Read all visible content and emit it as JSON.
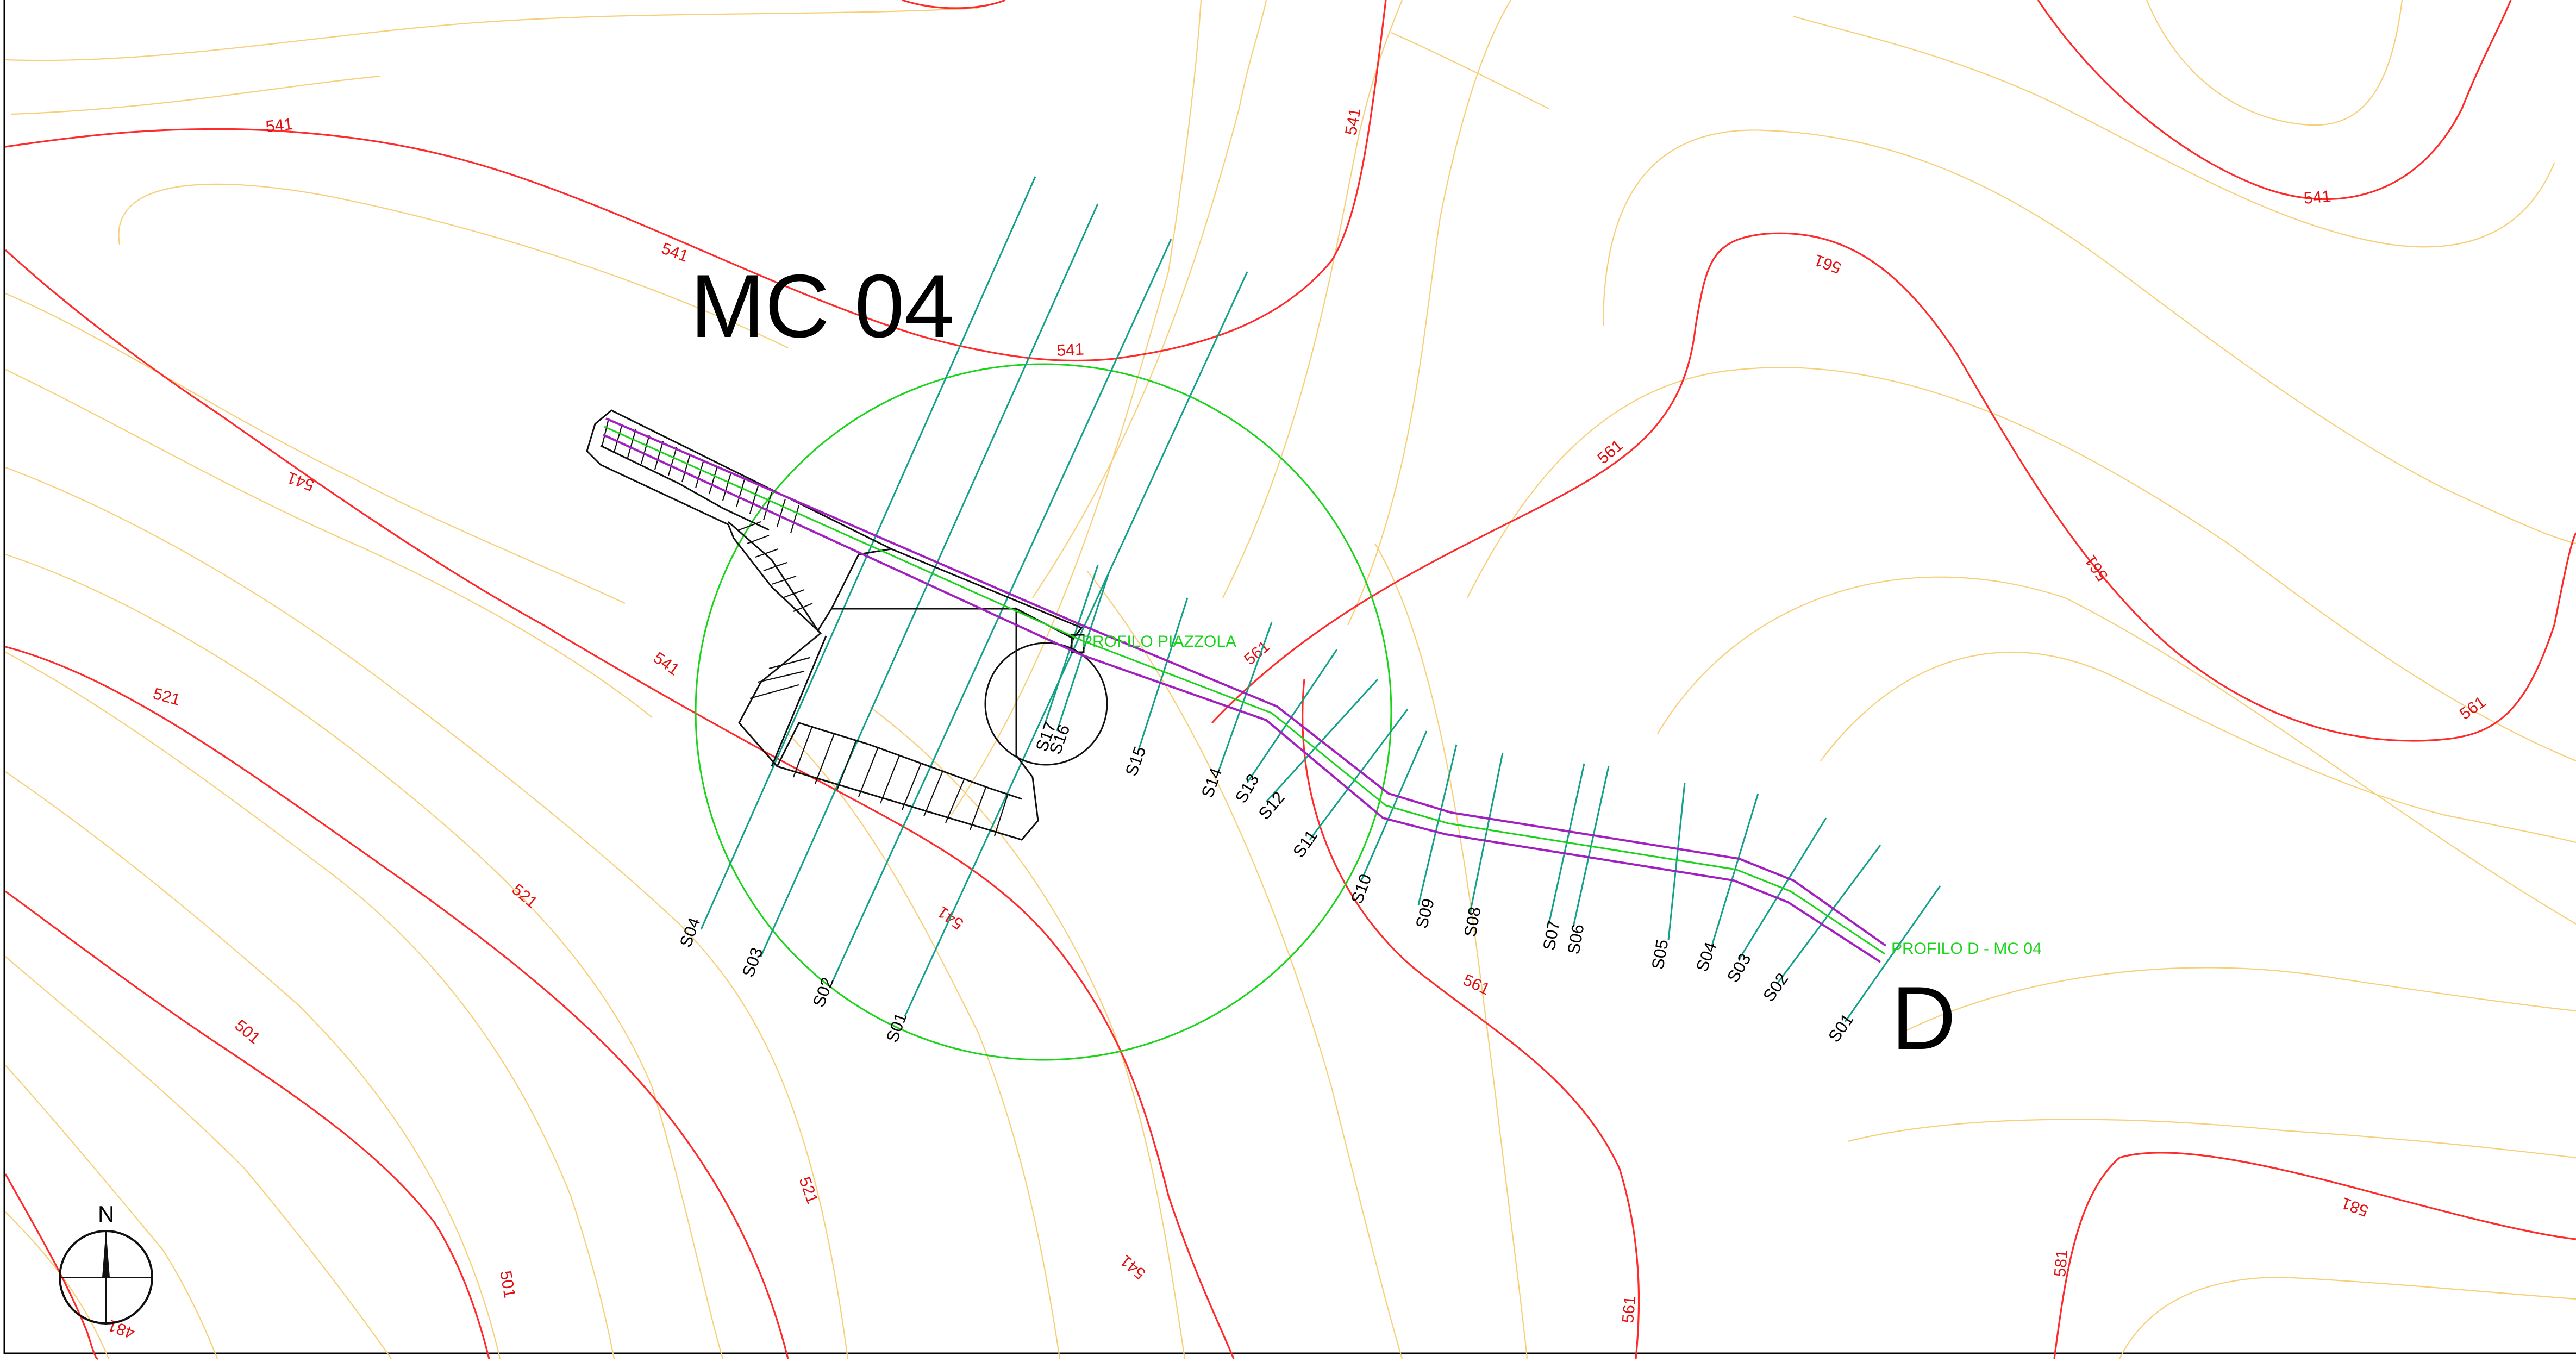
{
  "title_site": "MC 04",
  "title_profile": "D",
  "profile_piazzola_label": "PROFILO PIAZZOLA",
  "profile_d_label": "PROFILO D - MC 04",
  "north_label": "N",
  "contour_labels": {
    "c1": "541",
    "c2": "541",
    "c3": "541",
    "c4": "541",
    "c5": "541",
    "c6": "541",
    "c7": "541",
    "c8": "541",
    "c9": "521",
    "c10": "521",
    "c11": "521",
    "c12": "501",
    "c13": "501",
    "c14": "481",
    "c15": "561",
    "c16": "561",
    "c17": "561",
    "c18": "561",
    "c19": "561",
    "c20": "561",
    "c21": "561",
    "c22": "541",
    "c23": "581",
    "c24": "581"
  },
  "piazzola_sections": {
    "s01": "S01",
    "s02": "S02",
    "s03": "S03",
    "s04": "S04",
    "s15": "S15",
    "s16": "S16",
    "s17": "S17"
  },
  "profile_sections": {
    "s14": "S14",
    "s13": "S13",
    "s12": "S12",
    "s11": "S11",
    "s10": "S10",
    "s09": "S09",
    "s08": "S08",
    "s07": "S07",
    "s06": "S06",
    "s05": "S05",
    "s04": "S04",
    "s03": "S03",
    "s02": "S02",
    "s01": "S01"
  },
  "colors": {
    "major_contour": "#ff2a2a",
    "minor_contour": "#f6cf78",
    "section_line": "#12a088",
    "axis_green": "#19d419",
    "road_purple": "#a020c0"
  }
}
